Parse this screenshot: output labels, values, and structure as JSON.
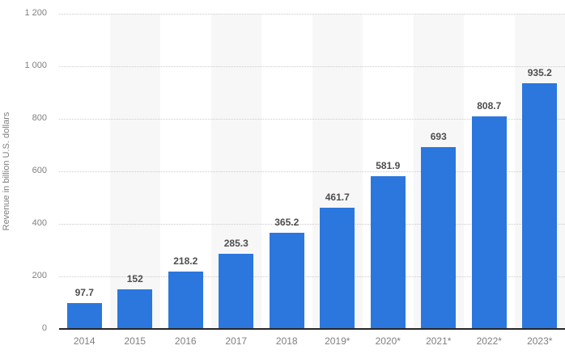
{
  "chart_data": {
    "type": "bar",
    "title": "",
    "xlabel": "",
    "ylabel": "Revenue in billion U.S. dollars",
    "categories": [
      "2014",
      "2015",
      "2016",
      "2017",
      "2018",
      "2019*",
      "2020*",
      "2021*",
      "2022*",
      "2023*"
    ],
    "values": [
      97.7,
      152,
      218.2,
      285.3,
      365.2,
      461.7,
      581.9,
      693,
      808.7,
      935.2
    ],
    "value_labels": [
      "97.7",
      "152",
      "218.2",
      "285.3",
      "365.2",
      "461.7",
      "581.9",
      "693",
      "808.7",
      "935.2"
    ],
    "ylim": [
      0,
      1200
    ],
    "ytick_interval": 200,
    "ytick_labels": [
      "0",
      "200",
      "400",
      "600",
      "800",
      "1 000",
      "1 200"
    ],
    "grid": "horizontal-dotted",
    "legend_position": "none",
    "striped_columns": "alternating, starting with second category",
    "colors": {
      "bar": "#2b77de",
      "gridline": "#cccccc",
      "column_stripe": "#f7f7f7",
      "axis_line": "#262626",
      "tick_label": "#808080",
      "category_label": "#7f7f7f",
      "value_label": "#4d4d4d",
      "background": "#ffffff"
    }
  }
}
